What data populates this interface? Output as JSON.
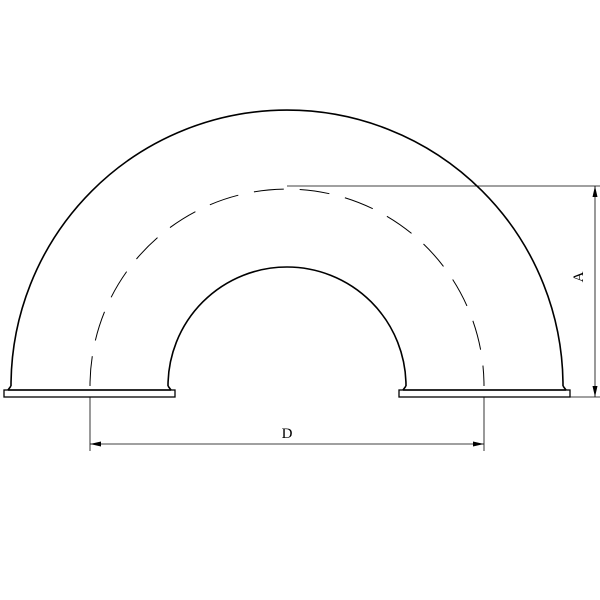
{
  "drawing": {
    "labels": {
      "diameter": "D",
      "height": "A"
    },
    "colors": {
      "line": "#000000",
      "background": "#ffffff"
    }
  }
}
